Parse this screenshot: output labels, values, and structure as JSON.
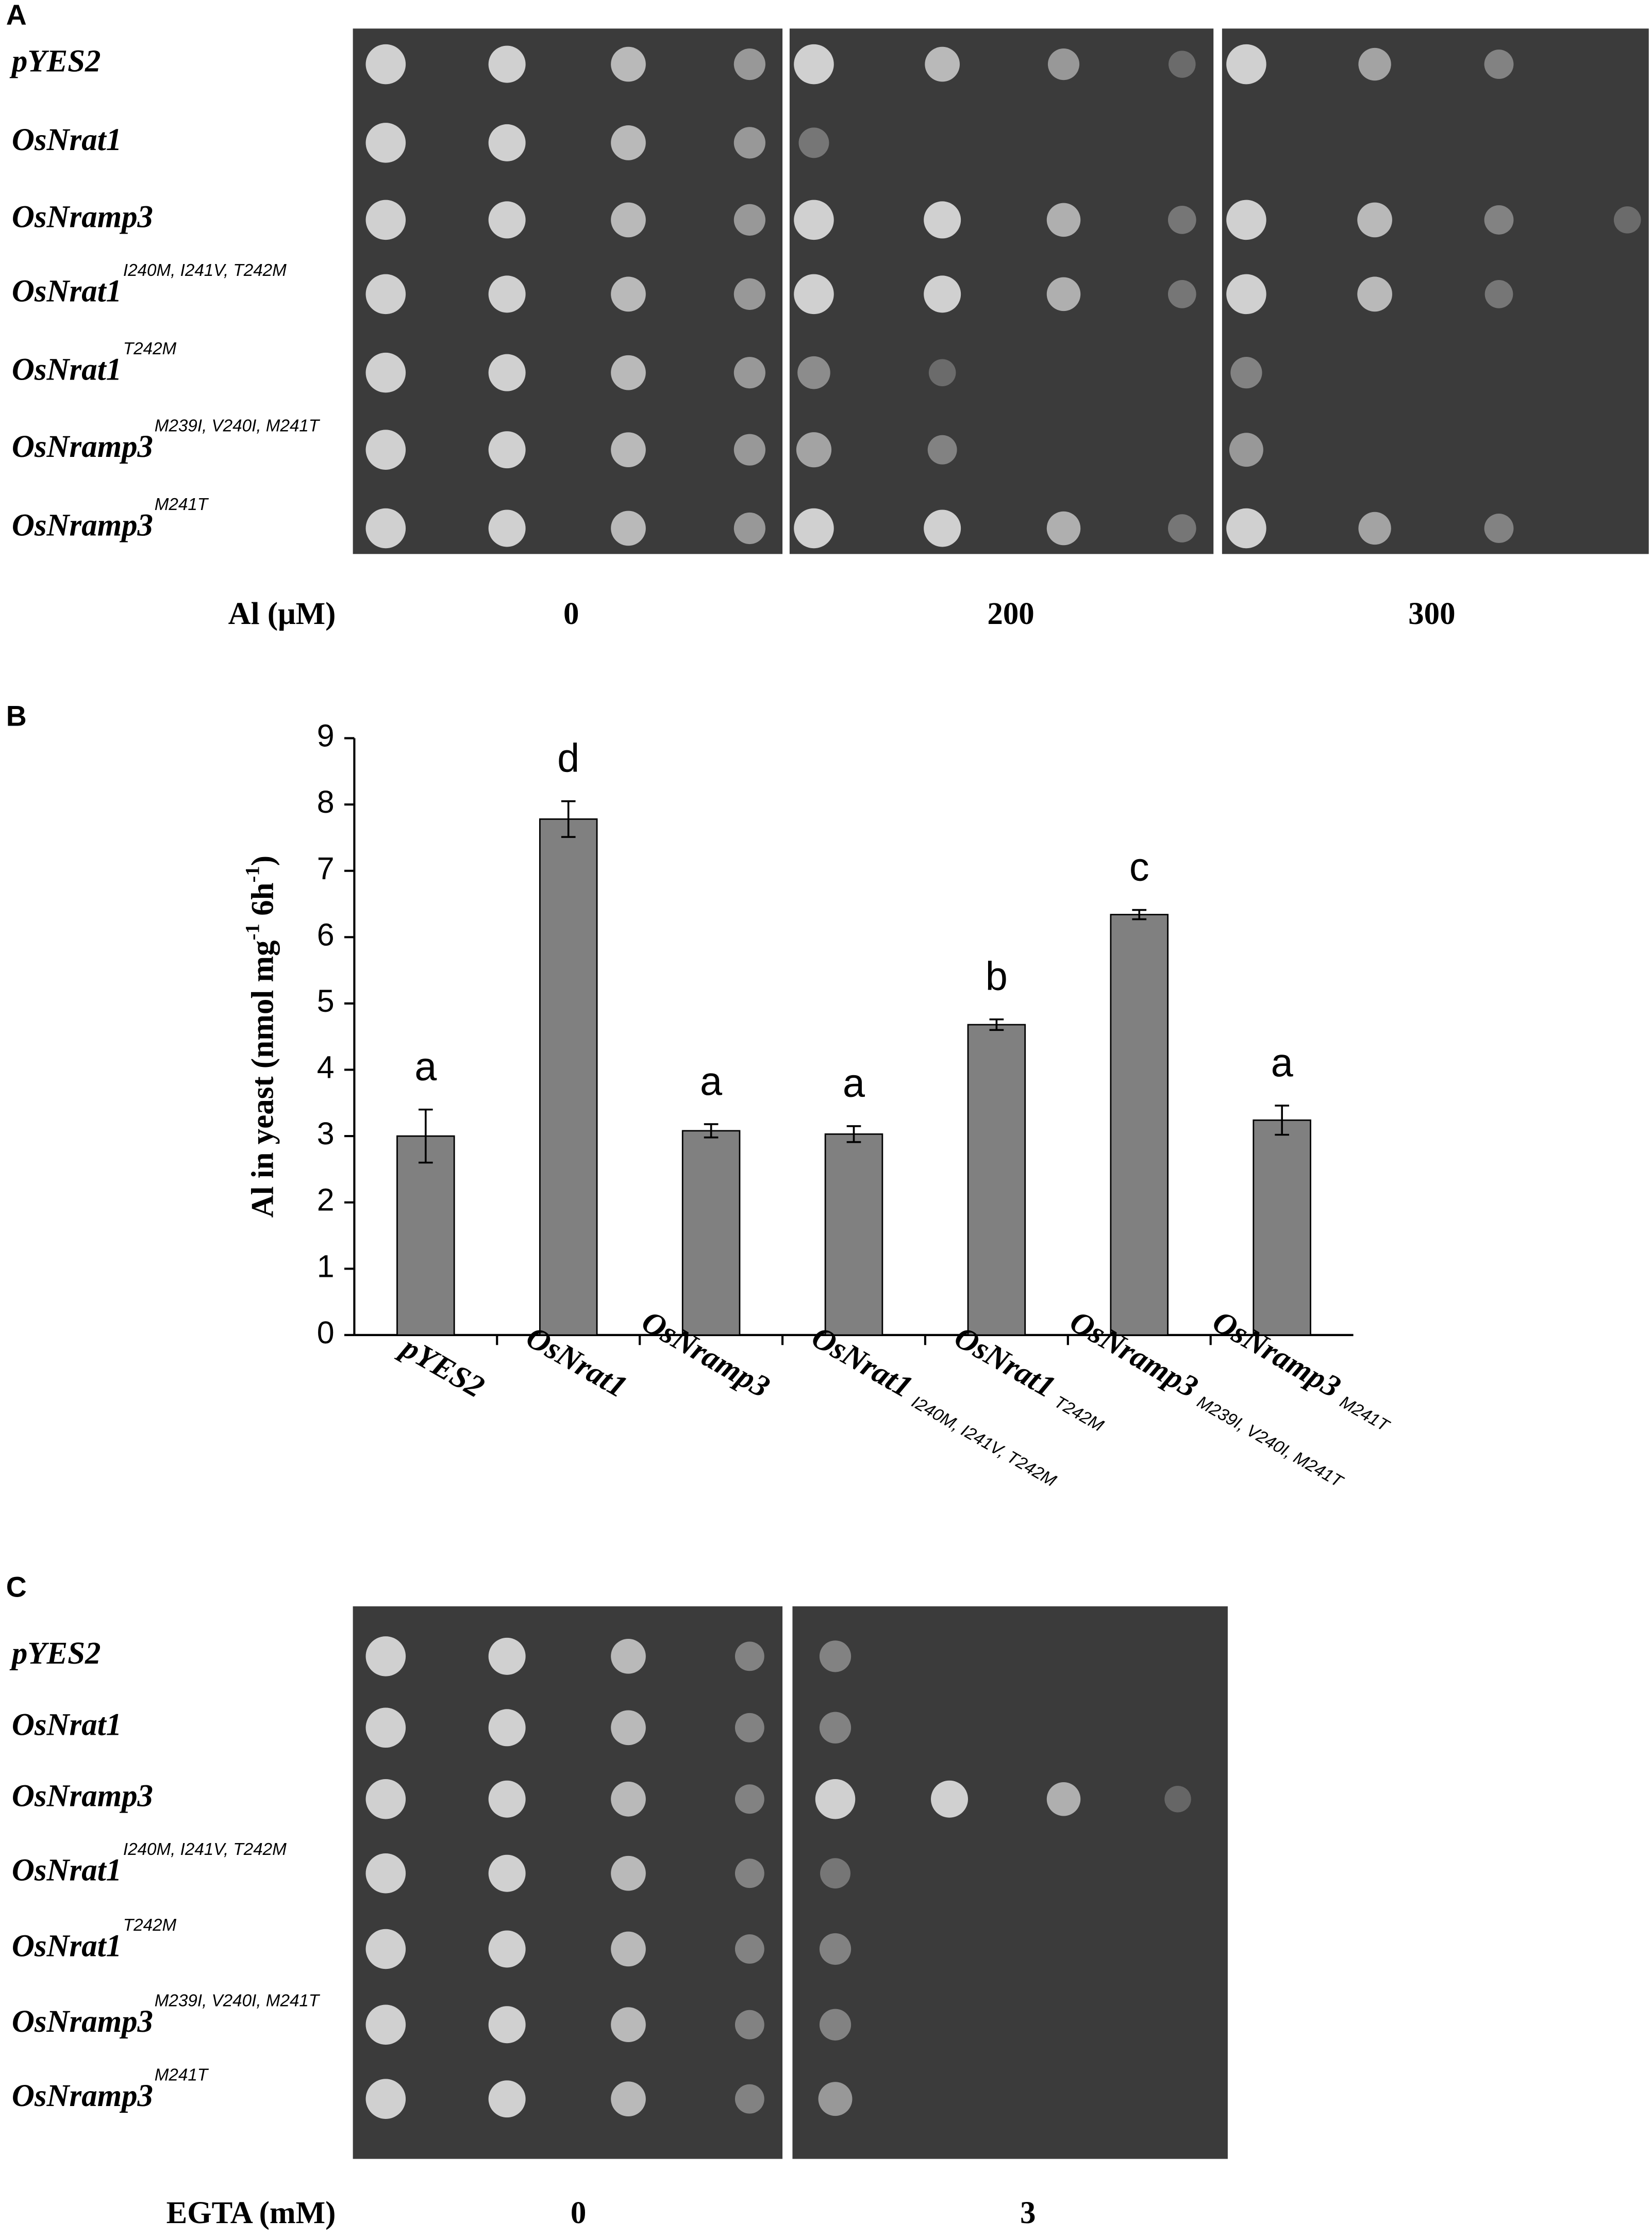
{
  "panel_a": {
    "label": "A",
    "rows": [
      {
        "name": "pYES2"
      },
      {
        "name": "OsNrat1"
      },
      {
        "name": "OsNramp3"
      },
      {
        "name": "OsNrat1",
        "superscript": "I240M, I241V, T242M"
      },
      {
        "name": "OsNrat1",
        "superscript": "T242M"
      },
      {
        "name": "OsNramp3",
        "superscript": "M239I, V240I, M241T"
      },
      {
        "name": "OsNramp3",
        "superscript": "M241T"
      }
    ],
    "condition_label": "Al (μM)",
    "conditions": [
      "0",
      "200",
      "300"
    ]
  },
  "chart_data": {
    "type": "bar",
    "panel_label": "B",
    "y_label_parts": [
      "Al in yeast (nmol mg",
      "-1",
      " 6h",
      "-1",
      ")"
    ],
    "categories": [
      "pYES2",
      "OsNrat1",
      "OsNramp3",
      "OsNrat1",
      "OsNrat1",
      "OsNramp3",
      "OsNramp3"
    ],
    "category_superscripts": [
      null,
      null,
      null,
      "I240M, I241V, T242M",
      "T242M",
      "M239I, V240I, M241T",
      "M241T"
    ],
    "values": [
      3.0,
      7.78,
      3.08,
      3.03,
      4.68,
      6.34,
      3.24
    ],
    "errors": [
      0.4,
      0.27,
      0.1,
      0.12,
      0.08,
      0.07,
      0.22
    ],
    "letters": [
      "a",
      "d",
      "a",
      "a",
      "b",
      "c",
      "a"
    ],
    "color": "#808080",
    "ylim": [
      0,
      9
    ],
    "yticks": [
      0,
      1,
      2,
      3,
      4,
      5,
      6,
      7,
      8,
      9
    ]
  },
  "panel_c": {
    "label": "C",
    "rows": [
      {
        "name": "pYES2"
      },
      {
        "name": "OsNrat1"
      },
      {
        "name": "OsNramp3"
      },
      {
        "name": "OsNrat1",
        "superscript": "I240M, I241V, T242M"
      },
      {
        "name": "OsNrat1",
        "superscript": "T242M"
      },
      {
        "name": "OsNramp3",
        "superscript": "M239I, V240I, M241T"
      },
      {
        "name": "OsNramp3",
        "superscript": "M241T"
      }
    ],
    "condition_label": "EGTA (mM)",
    "conditions": [
      "0",
      "3"
    ]
  }
}
